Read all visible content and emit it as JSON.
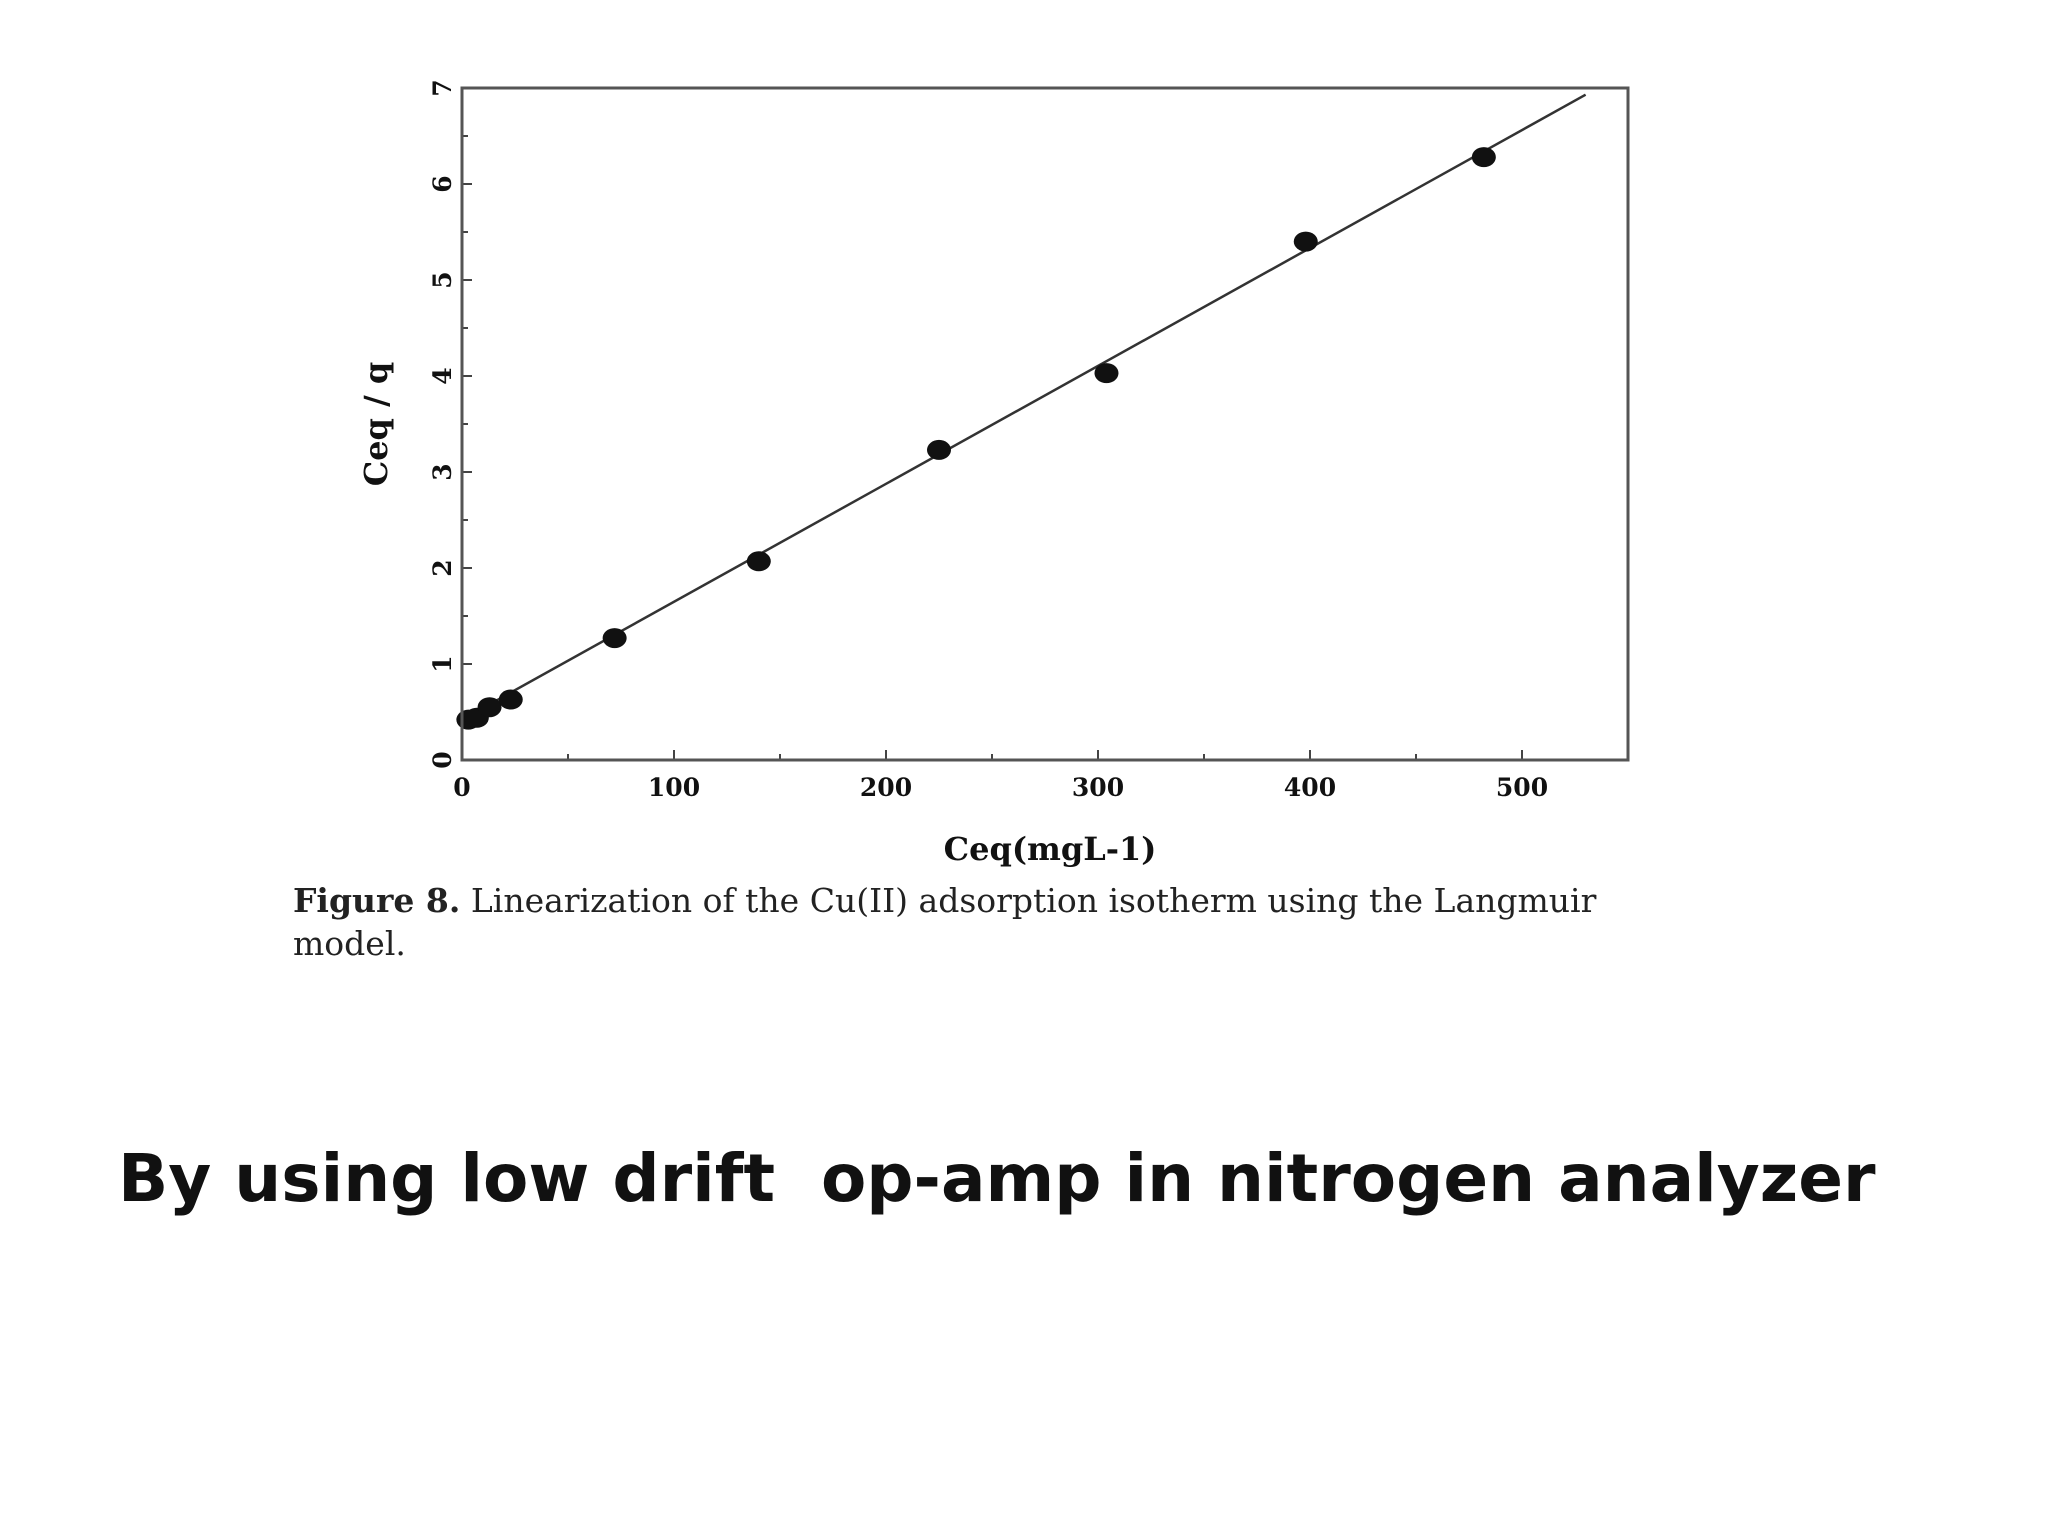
{
  "chart_data": {
    "type": "scatter",
    "x": [
      3,
      7,
      13,
      23,
      72,
      140,
      225,
      304,
      398,
      482
    ],
    "y": [
      0.42,
      0.44,
      0.55,
      0.63,
      1.27,
      2.07,
      3.23,
      4.03,
      5.4,
      6.28
    ],
    "fit_line": {
      "x0": 0,
      "y0": 0.42,
      "x1": 530,
      "y1": 6.93
    },
    "xlim": [
      0,
      550
    ],
    "ylim": [
      0,
      7
    ],
    "x_ticks": [
      "0",
      "100",
      "200",
      "300",
      "400",
      "500"
    ],
    "y_ticks": [
      "0",
      "1",
      "2",
      "3",
      "4",
      "5",
      "6",
      "7"
    ],
    "ylabel": "Ceq / q",
    "xlabel": "Ceq(mgL-1)",
    "grid": false
  },
  "caption": {
    "label": "Figure 8.",
    "text": "Linearization of the Cu(II) adsorption isotherm using the Langmuir model."
  },
  "slide_text": "By using low drift  op-amp in nitrogen analyzer"
}
